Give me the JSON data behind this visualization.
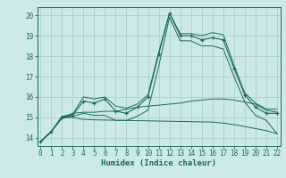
{
  "xlabel": "Humidex (Indice chaleur)",
  "bg_color": "#cce8e8",
  "grid_color": "#aacece",
  "line_color": "#1a6b5a",
  "x_values": [
    0,
    1,
    2,
    3,
    4,
    5,
    6,
    7,
    8,
    9,
    10,
    11,
    12,
    13,
    14,
    15,
    16,
    17,
    18,
    19,
    20,
    21,
    22
  ],
  "main_line": [
    13.8,
    14.3,
    15.0,
    15.1,
    15.8,
    15.7,
    15.9,
    15.3,
    15.2,
    15.5,
    16.0,
    18.1,
    20.1,
    19.0,
    19.0,
    18.8,
    18.9,
    18.8,
    17.4,
    16.1,
    15.5,
    15.2,
    15.2
  ],
  "upper_line": [
    13.8,
    14.3,
    15.05,
    15.15,
    16.0,
    15.9,
    16.0,
    15.55,
    15.45,
    15.65,
    16.1,
    18.2,
    20.1,
    19.1,
    19.1,
    19.0,
    19.15,
    19.05,
    17.55,
    16.2,
    15.7,
    15.4,
    15.4
  ],
  "lower_line": [
    13.8,
    14.3,
    14.95,
    15.05,
    15.2,
    15.1,
    15.1,
    14.85,
    14.85,
    15.05,
    15.35,
    17.5,
    19.9,
    18.75,
    18.75,
    18.5,
    18.5,
    18.35,
    17.0,
    15.75,
    15.1,
    14.85,
    14.2
  ],
  "flat_upper": [
    13.8,
    14.3,
    15.0,
    15.2,
    15.25,
    15.25,
    15.3,
    15.3,
    15.4,
    15.5,
    15.55,
    15.6,
    15.65,
    15.7,
    15.8,
    15.85,
    15.9,
    15.9,
    15.85,
    15.75,
    15.65,
    15.35,
    15.25
  ],
  "flat_lower": [
    13.8,
    14.3,
    15.0,
    15.0,
    14.9,
    14.88,
    14.87,
    14.86,
    14.85,
    14.84,
    14.83,
    14.82,
    14.81,
    14.8,
    14.79,
    14.78,
    14.77,
    14.72,
    14.65,
    14.55,
    14.45,
    14.35,
    14.2
  ],
  "ylim": [
    13.6,
    20.4
  ],
  "yticks": [
    14,
    15,
    16,
    17,
    18,
    19,
    20
  ],
  "xticks": [
    0,
    1,
    2,
    3,
    4,
    5,
    6,
    7,
    8,
    9,
    10,
    11,
    12,
    13,
    14,
    15,
    16,
    17,
    18,
    19,
    20,
    21,
    22
  ],
  "xlim": [
    -0.3,
    22.3
  ]
}
